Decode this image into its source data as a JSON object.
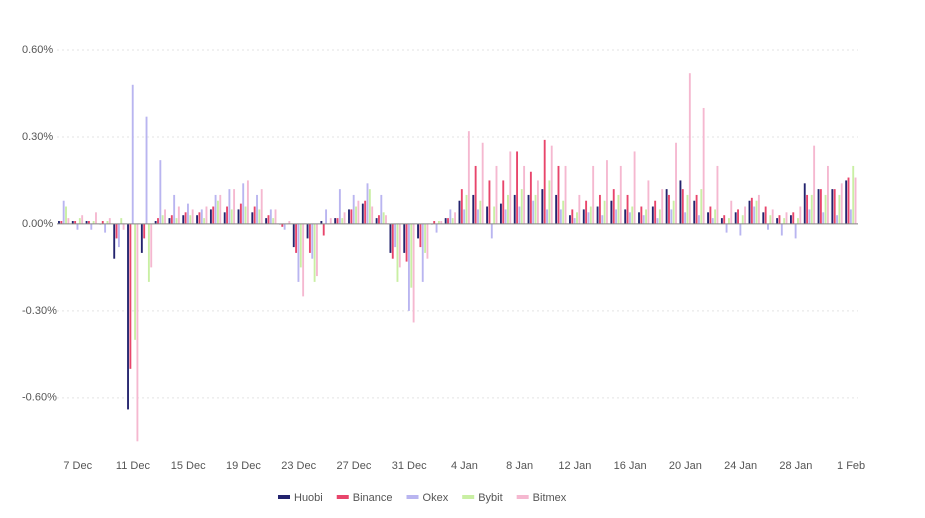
{
  "chart_data": {
    "type": "bar",
    "categories": [
      null,
      "7 Dec",
      null,
      null,
      null,
      "11 Dec",
      null,
      null,
      null,
      "15 Dec",
      null,
      null,
      null,
      "19 Dec",
      null,
      null,
      null,
      "23 Dec",
      null,
      null,
      null,
      "27 Dec",
      null,
      null,
      null,
      "31 Dec",
      null,
      null,
      null,
      "4 Jan",
      null,
      null,
      null,
      "8 Jan",
      null,
      null,
      null,
      "12 Jan",
      null,
      null,
      null,
      "16 Jan",
      null,
      null,
      null,
      "20 Jan",
      null,
      null,
      null,
      "24 Jan",
      null,
      null,
      null,
      "28 Jan",
      null,
      null,
      null,
      "1 Feb"
    ],
    "series": [
      {
        "name": "Huobi",
        "color": "#23236e",
        "values": [
          0.01,
          0.01,
          0.01,
          0.0,
          -0.12,
          -0.64,
          -0.1,
          0.01,
          0.02,
          0.03,
          0.03,
          0.05,
          0.04,
          0.05,
          0.04,
          0.02,
          0.0,
          -0.08,
          -0.05,
          0.01,
          0.02,
          0.05,
          0.07,
          0.02,
          -0.1,
          -0.1,
          -0.05,
          0.0,
          0.02,
          0.08,
          0.1,
          0.06,
          0.07,
          0.1,
          0.1,
          0.12,
          0.1,
          0.03,
          0.05,
          0.06,
          0.08,
          0.05,
          0.04,
          0.06,
          0.12,
          0.15,
          0.08,
          0.04,
          0.02,
          0.04,
          0.08,
          0.04,
          0.02,
          0.03,
          0.14,
          0.12,
          0.12,
          0.15
        ]
      },
      {
        "name": "Binance",
        "color": "#e8456b",
        "values": [
          0.01,
          0.01,
          0.01,
          0.01,
          -0.05,
          -0.5,
          -0.05,
          0.02,
          0.03,
          0.04,
          0.04,
          0.06,
          0.06,
          0.07,
          0.06,
          0.03,
          -0.01,
          -0.1,
          -0.1,
          -0.04,
          0.02,
          0.05,
          0.08,
          0.03,
          -0.12,
          -0.13,
          -0.08,
          0.01,
          0.02,
          0.12,
          0.2,
          0.15,
          0.15,
          0.25,
          0.18,
          0.29,
          0.2,
          0.05,
          0.08,
          0.1,
          0.12,
          0.1,
          0.06,
          0.08,
          0.1,
          0.12,
          0.1,
          0.06,
          0.03,
          0.05,
          0.09,
          0.06,
          0.03,
          0.04,
          0.1,
          0.12,
          0.12,
          0.16
        ]
      },
      {
        "name": "Okex",
        "color": "#b9b5f0",
        "values": [
          0.08,
          -0.02,
          -0.02,
          -0.03,
          -0.08,
          0.48,
          0.37,
          0.22,
          0.1,
          0.07,
          0.05,
          0.1,
          0.12,
          0.14,
          0.1,
          0.05,
          -0.02,
          -0.2,
          -0.12,
          0.05,
          0.12,
          0.1,
          0.14,
          0.1,
          -0.08,
          -0.3,
          -0.2,
          -0.03,
          0.05,
          0.05,
          0.05,
          -0.05,
          0.05,
          0.06,
          0.08,
          0.05,
          0.05,
          0.02,
          0.04,
          0.03,
          0.05,
          0.04,
          0.03,
          0.02,
          0.05,
          0.04,
          0.03,
          0.02,
          -0.03,
          -0.04,
          0.06,
          -0.02,
          -0.04,
          -0.05,
          0.05,
          0.04,
          0.03,
          0.05
        ]
      },
      {
        "name": "Bybit",
        "color": "#c9efa3",
        "values": [
          0.06,
          0.02,
          0.01,
          0.01,
          0.02,
          -0.4,
          -0.2,
          0.03,
          0.02,
          0.03,
          0.02,
          0.08,
          0.05,
          0.06,
          0.05,
          0.02,
          0.0,
          -0.15,
          -0.2,
          0.0,
          0.02,
          0.06,
          0.12,
          0.04,
          -0.2,
          -0.22,
          -0.1,
          0.01,
          0.02,
          0.1,
          0.08,
          0.06,
          0.1,
          0.12,
          0.1,
          0.15,
          0.08,
          0.04,
          0.06,
          0.08,
          0.1,
          0.06,
          0.05,
          0.05,
          0.08,
          0.1,
          0.12,
          0.05,
          0.02,
          0.03,
          0.08,
          0.03,
          0.02,
          0.02,
          0.1,
          0.1,
          0.1,
          0.2
        ]
      },
      {
        "name": "Bitmex",
        "color": "#f5b8d0",
        "values": [
          0.02,
          0.03,
          0.04,
          0.02,
          -0.02,
          -0.75,
          -0.15,
          0.05,
          0.06,
          0.05,
          0.06,
          0.1,
          0.12,
          0.15,
          0.12,
          0.05,
          0.01,
          -0.25,
          -0.18,
          0.02,
          0.04,
          0.08,
          0.06,
          0.03,
          -0.15,
          -0.34,
          -0.12,
          0.01,
          0.04,
          0.32,
          0.28,
          0.2,
          0.25,
          0.2,
          0.15,
          0.27,
          0.2,
          0.1,
          0.2,
          0.22,
          0.2,
          0.25,
          0.15,
          0.12,
          0.28,
          0.52,
          0.4,
          0.2,
          0.08,
          0.06,
          0.1,
          0.05,
          0.04,
          0.06,
          0.27,
          0.2,
          0.14,
          0.16
        ]
      }
    ],
    "ylim": [
      -0.78,
      0.6
    ],
    "yticks": [
      {
        "value": -0.6,
        "label": "-0.60%"
      },
      {
        "value": -0.3,
        "label": "-0.30%"
      },
      {
        "value": 0,
        "label": "0.00%"
      },
      {
        "value": 0.3,
        "label": "0.30%"
      },
      {
        "value": 0.6,
        "label": "0.60%"
      }
    ],
    "grid": true,
    "legend": "bottom"
  }
}
